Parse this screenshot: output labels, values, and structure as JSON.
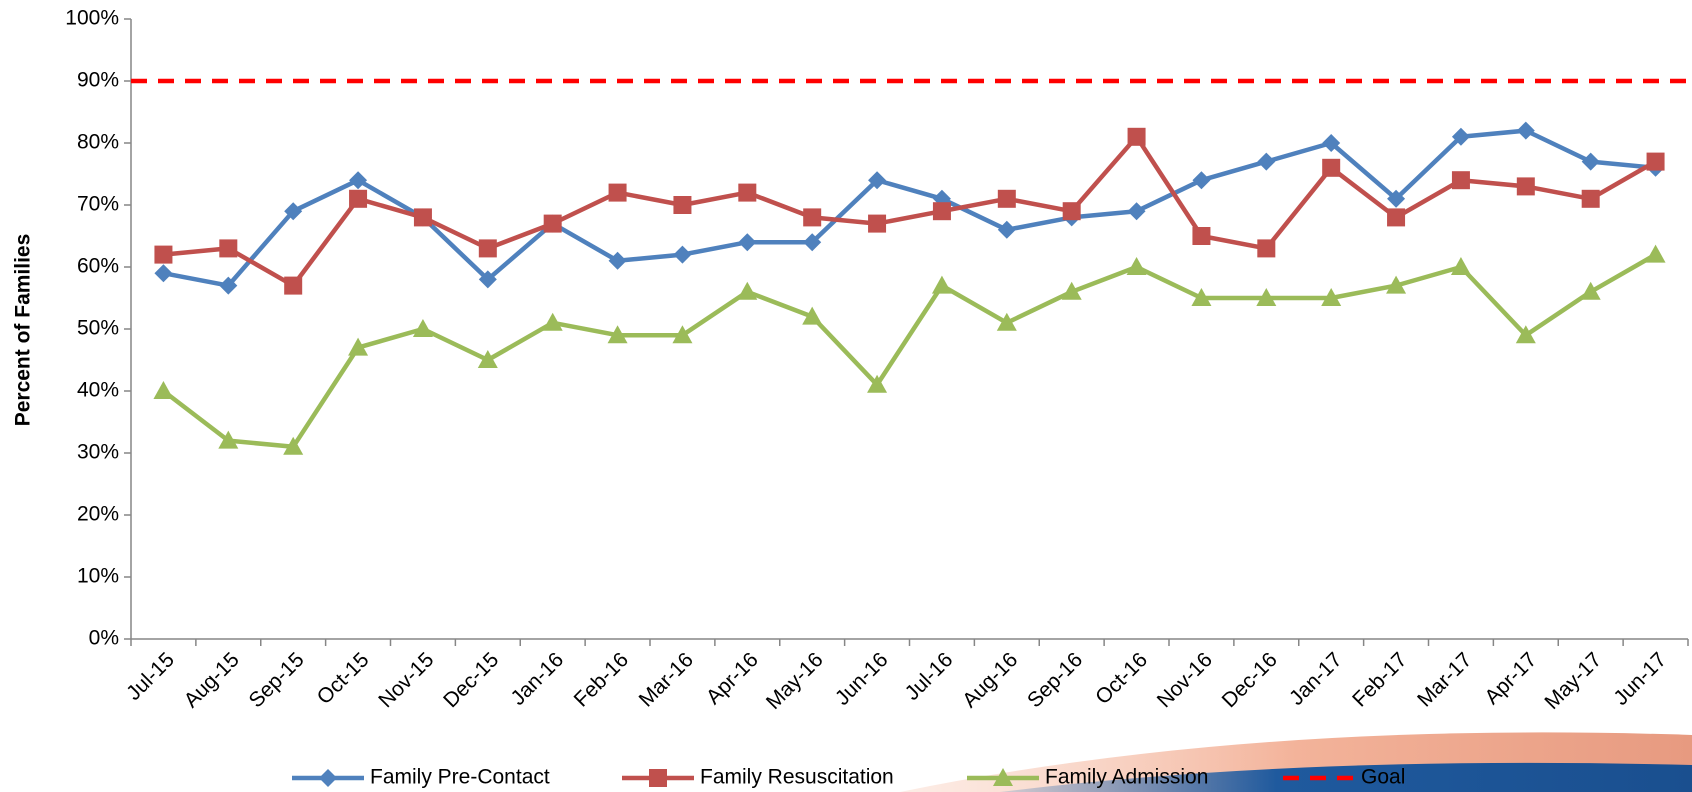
{
  "chart_data": {
    "type": "line",
    "y_label": "Percent of Families",
    "categories": [
      "Jul-15",
      "Aug-15",
      "Sep-15",
      "Oct-15",
      "Nov-15",
      "Dec-15",
      "Jan-16",
      "Feb-16",
      "Mar-16",
      "Apr-16",
      "May-16",
      "Jun-16",
      "Jul-16",
      "Aug-16",
      "Sep-16",
      "Oct-16",
      "Nov-16",
      "Dec-16",
      "Jan-17",
      "Feb-17",
      "Mar-17",
      "Apr-17",
      "May-17",
      "Jun-17"
    ],
    "series": [
      {
        "name": "Family Pre-Contact",
        "color": "#4f81bd",
        "marker": "diamond",
        "values": [
          59,
          57,
          69,
          74,
          68,
          58,
          67,
          61,
          62,
          64,
          64,
          74,
          71,
          66,
          68,
          69,
          74,
          77,
          80,
          71,
          81,
          82,
          77,
          76
        ]
      },
      {
        "name": "Family Resuscitation",
        "color": "#c0504d",
        "marker": "square",
        "values": [
          62,
          63,
          57,
          71,
          68,
          63,
          67,
          72,
          70,
          72,
          68,
          67,
          69,
          71,
          69,
          81,
          65,
          63,
          76,
          68,
          74,
          73,
          71,
          77
        ]
      },
      {
        "name": "Family Admission",
        "color": "#9bbb59",
        "marker": "triangle",
        "values": [
          40,
          32,
          31,
          47,
          50,
          45,
          51,
          49,
          49,
          56,
          52,
          41,
          57,
          51,
          56,
          60,
          55,
          55,
          55,
          57,
          60,
          49,
          56,
          62
        ]
      }
    ],
    "reference_line": {
      "name": "Goal",
      "value": 90,
      "color": "#ff0000",
      "style": "dashed"
    },
    "ylim": [
      0,
      100
    ],
    "yticks": [
      {
        "value": 0,
        "label": "0%"
      },
      {
        "value": 10,
        "label": "10%"
      },
      {
        "value": 20,
        "label": "20%"
      },
      {
        "value": 30,
        "label": "30%"
      },
      {
        "value": 40,
        "label": "40%"
      },
      {
        "value": 50,
        "label": "50%"
      },
      {
        "value": 60,
        "label": "60%"
      },
      {
        "value": 70,
        "label": "70%"
      },
      {
        "value": 80,
        "label": "80%"
      },
      {
        "value": 90,
        "label": "90%"
      },
      {
        "value": 100,
        "label": "100%"
      }
    ],
    "legend": "bottom"
  }
}
